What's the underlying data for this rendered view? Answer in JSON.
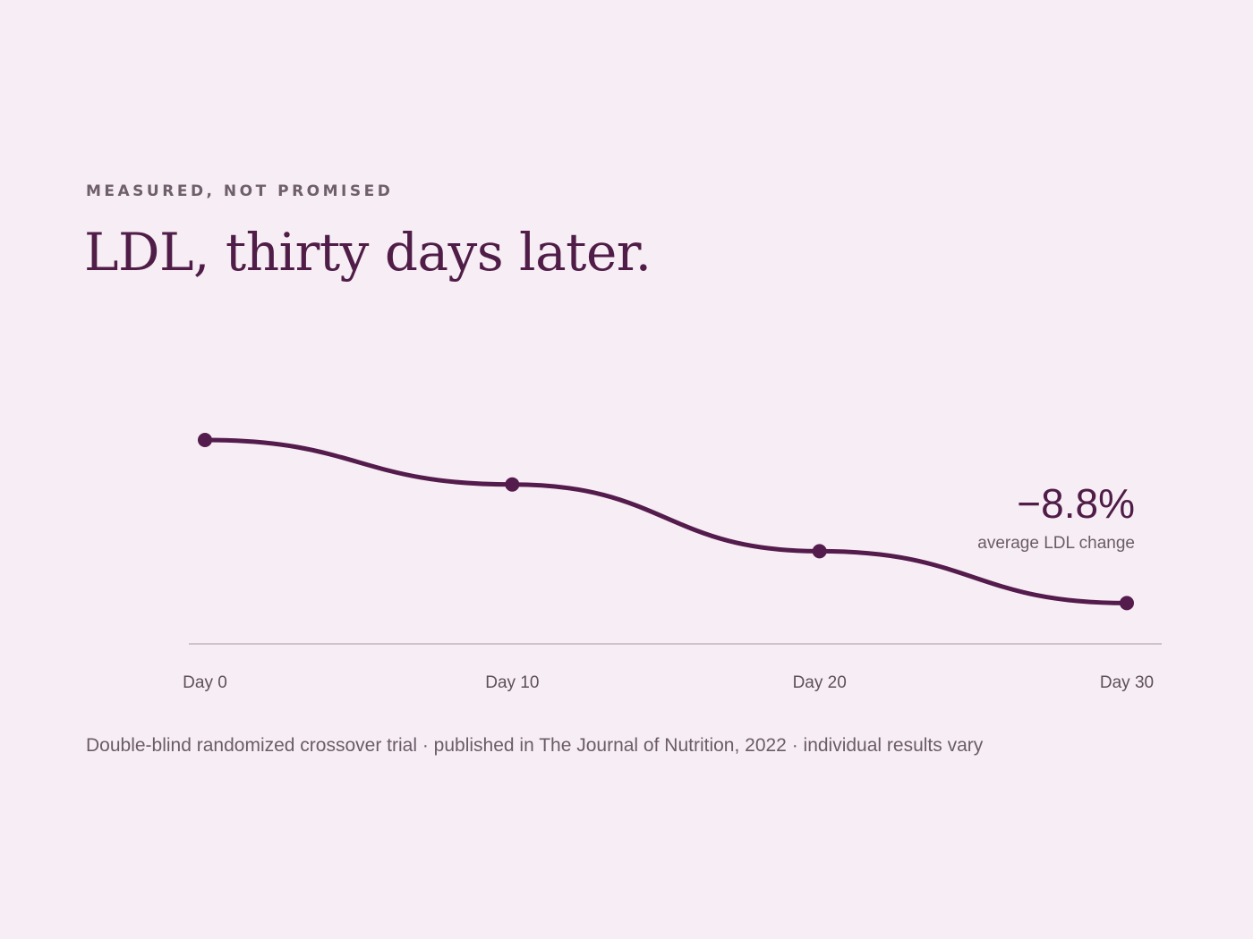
{
  "header": {
    "eyebrow": "MEASURED, NOT PROMISED",
    "title": "LDL, thirty days later."
  },
  "chart_data": {
    "type": "line",
    "title": "LDL, thirty days later.",
    "xlabel": "",
    "ylabel": "",
    "x": [
      0,
      10,
      20,
      30
    ],
    "tick_labels": [
      "Day 0",
      "Day 10",
      "Day 20",
      "Day 30"
    ],
    "series": [
      {
        "values": [
          0,
          -2.4,
          -6.0,
          -8.8
        ]
      }
    ],
    "xlim": [
      0,
      30
    ],
    "ylim": [
      -11,
      0
    ],
    "grid": false,
    "legend": "none",
    "line_color": "#541c4c",
    "axis_color": "#c3b3bf",
    "annotation": {
      "value": "−8.8%",
      "label": "average LDL change"
    }
  },
  "footnote": "Double-blind randomized crossover trial · published in The Journal of Nutrition, 2022 · individual results vary"
}
